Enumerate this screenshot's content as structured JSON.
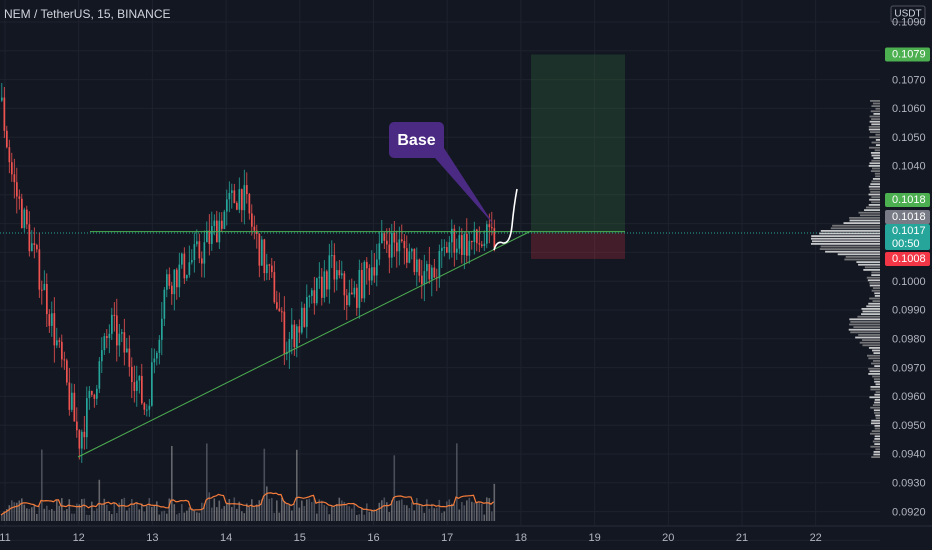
{
  "header": {
    "title": "NEM / TetherUS, 15, BINANCE"
  },
  "price_axis": {
    "currency": "USDT",
    "labels": [
      "0.1090",
      "0.1070",
      "0.1060",
      "0.1050",
      "0.1040",
      "0.1000",
      "0.0990",
      "0.0980",
      "0.0970",
      "0.0960",
      "0.0950",
      "0.0940",
      "0.0930",
      "0.0920"
    ]
  },
  "badges": [
    {
      "text": "0.1079",
      "color": "#4caf50"
    },
    {
      "text": "0.1018",
      "color": "#4caf50"
    },
    {
      "text": "0.1018",
      "color": "#787b86"
    },
    {
      "text": "0.1017",
      "sub": "00:50",
      "color": "#26a69a"
    },
    {
      "text": "0.1008",
      "color": "#f23645"
    }
  ],
  "time_axis": {
    "labels": [
      "11",
      "12",
      "13",
      "14",
      "15",
      "16",
      "17",
      "18",
      "19",
      "20",
      "21",
      "22"
    ]
  },
  "annotation": {
    "text": "Base"
  }
}
